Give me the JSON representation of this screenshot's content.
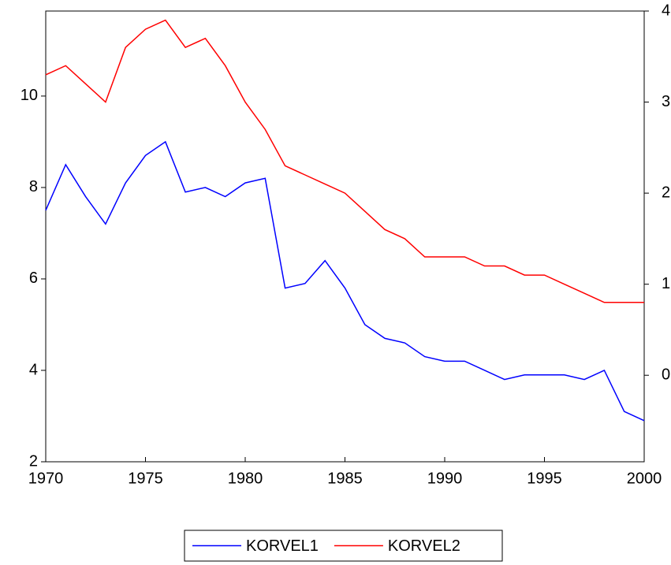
{
  "chart_data": {
    "type": "line",
    "x": [
      1970,
      1971,
      1972,
      1973,
      1974,
      1975,
      1976,
      1977,
      1978,
      1979,
      1980,
      1981,
      1982,
      1983,
      1984,
      1985,
      1986,
      1987,
      1988,
      1989,
      1990,
      1991,
      1992,
      1993,
      1994,
      1995,
      1996,
      1997,
      1998,
      1999,
      2000
    ],
    "series": [
      {
        "name": "KORVEL1",
        "color": "#0000ff",
        "values": [
          7.5,
          8.5,
          7.8,
          7.2,
          8.1,
          8.7,
          9.0,
          7.9,
          8.0,
          7.8,
          8.1,
          8.2,
          5.8,
          5.9,
          6.4,
          5.8,
          5.0,
          4.7,
          4.6,
          4.3,
          4.2,
          4.2,
          4.0,
          3.8,
          3.9,
          3.9,
          3.9,
          3.8,
          4.0,
          3.1,
          2.9
        ]
      },
      {
        "name": "KORVEL2",
        "color": "#ff0000",
        "axis": "y2",
        "values": [
          3.3,
          3.4,
          3.2,
          3.0,
          3.6,
          3.8,
          3.9,
          3.6,
          3.7,
          3.4,
          3.0,
          2.7,
          2.3,
          2.2,
          2.1,
          2.0,
          1.8,
          1.6,
          1.5,
          1.3,
          1.3,
          1.3,
          1.2,
          1.2,
          1.1,
          1.1,
          1.0,
          0.9,
          0.8,
          0.8,
          0.8
        ]
      }
    ],
    "xlim": [
      1970,
      2000
    ],
    "xticks": [
      1970,
      1975,
      1980,
      1985,
      1990,
      1995,
      2000
    ],
    "ylim": [
      2,
      11.86
    ],
    "yticks": [
      2,
      4,
      6,
      8,
      10
    ],
    "y2lim": [
      -0.95,
      4
    ],
    "y2ticks": [
      0,
      1,
      2,
      3,
      4
    ],
    "legend": "bottom"
  }
}
